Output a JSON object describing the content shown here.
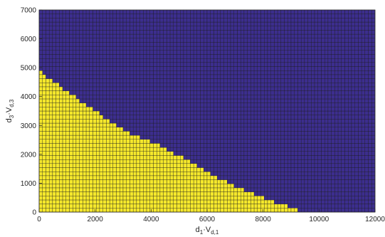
{
  "chart_data": {
    "type": "heatmap",
    "title": "",
    "xlabel": {
      "base": "d",
      "base_sub": "1",
      "mid": "·V",
      "mid_sub": "d,1"
    },
    "ylabel": {
      "base": "d",
      "base_sub": "3",
      "mid": "·V",
      "mid_sub": "d,3"
    },
    "xlim": [
      0,
      12000
    ],
    "ylim": [
      0,
      7000
    ],
    "x_ticks": [
      0,
      2000,
      4000,
      6000,
      8000,
      10000,
      12000
    ],
    "y_ticks": [
      0,
      1000,
      2000,
      3000,
      4000,
      5000,
      6000,
      7000
    ],
    "grid_x_step": 120,
    "grid_y_step": 140,
    "region_boundary": [
      {
        "x": 0,
        "y": 4900
      },
      {
        "x": 1000,
        "y": 4200
      },
      {
        "x": 2000,
        "y": 3500
      },
      {
        "x": 3000,
        "y": 2850
      },
      {
        "x": 4000,
        "y": 2450
      },
      {
        "x": 5000,
        "y": 1950
      },
      {
        "x": 6000,
        "y": 1400
      },
      {
        "x": 7000,
        "y": 900
      },
      {
        "x": 8000,
        "y": 500
      },
      {
        "x": 9000,
        "y": 150
      },
      {
        "x": 9400,
        "y": 0
      }
    ],
    "colors": {
      "feasible": "#f5e82c",
      "infeasible": "#3c2e8e",
      "cell_edge": "#1a1a1a"
    },
    "grid": true,
    "legend": "none"
  }
}
